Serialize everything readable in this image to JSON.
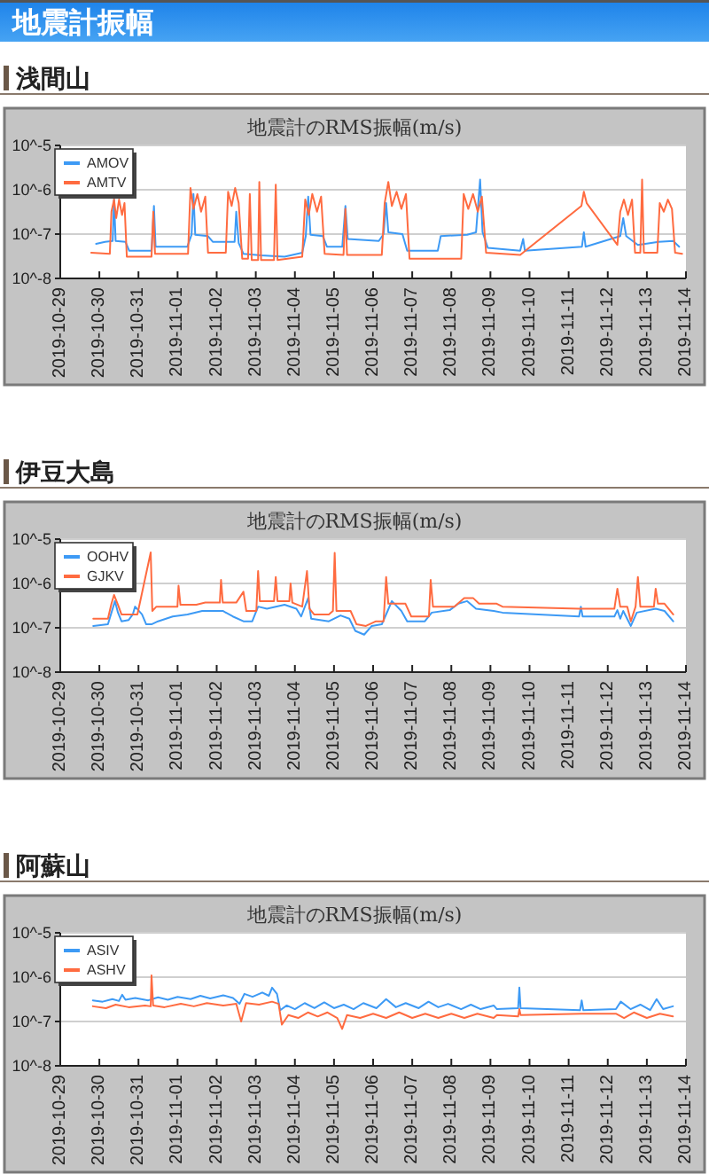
{
  "chart_data": [
    {
      "type": "other",
      "title": "地震計振幅"
    },
    {
      "type": "line",
      "title": "浅間山",
      "subtitle": "地震計のRMS振幅(m/s)",
      "xlim": [
        "2019-10-29",
        "2019-11-14"
      ],
      "xticks": [
        "2019-10-29",
        "2019-10-30",
        "2019-10-31",
        "2019-11-01",
        "2019-11-02",
        "2019-11-03",
        "2019-11-04",
        "2019-11-05",
        "2019-11-06",
        "2019-11-07",
        "2019-11-08",
        "2019-11-09",
        "2019-11-10",
        "2019-11-11",
        "2019-11-12",
        "2019-11-13",
        "2019-11-14"
      ],
      "ylim": [
        1e-08,
        1e-05
      ],
      "yticks": [
        {
          "value": 1e-08,
          "label": "10^-8"
        },
        {
          "value": 1e-07,
          "label": "10^-7"
        },
        {
          "value": 1e-06,
          "label": "10^-6"
        },
        {
          "value": 1e-05,
          "label": "10^-5"
        }
      ],
      "log": true,
      "grid": "y",
      "legend": "top left",
      "series": [
        {
          "name": "AMOV",
          "color": "#3d9af5",
          "x": [
            "2019-10-29T22:00",
            "2019-10-30T03:30",
            "2019-10-30T08:10",
            "2019-10-30T09:00",
            "2019-10-30T10:00",
            "2019-10-30T16:00",
            "2019-10-30T18:20",
            "2019-10-31T08:00",
            "2019-10-31T09:30",
            "2019-10-31T10:30",
            "2019-11-01T06:00",
            "2019-11-01T08:35",
            "2019-11-01T09:45",
            "2019-11-01T10:50",
            "2019-11-01T18:40",
            "2019-11-01T21:35",
            "2019-11-02T11:00",
            "2019-11-02T12:00",
            "2019-11-02T13:30",
            "2019-11-02T16:25",
            "2019-11-03T03:15",
            "2019-11-03T17:40",
            "2019-11-04T04:30",
            "2019-11-04T06:40",
            "2019-11-04T08:10",
            "2019-11-04T09:35",
            "2019-11-04T17:10",
            "2019-11-04T19:40",
            "2019-11-05T05:05",
            "2019-11-05T07:00",
            "2019-11-05T08:25",
            "2019-11-06T03:30",
            "2019-11-06T06:25",
            "2019-11-06T08:00",
            "2019-11-06T09:20",
            "2019-11-06T18:00",
            "2019-11-06T20:55",
            "2019-11-07T15:40",
            "2019-11-07T17:30",
            "2019-11-08T09:45",
            "2019-11-08T15:10",
            "2019-11-08T17:40",
            "2019-11-08T19:10",
            "2019-11-08T22:25",
            "2019-11-09T18:15",
            "2019-11-09T20:05",
            "2019-11-09T21:10",
            "2019-11-11T08:10",
            "2019-11-11T09:20",
            "2019-11-11T10:25",
            "2019-11-12T07:40",
            "2019-11-12T09:30",
            "2019-11-12T11:20",
            "2019-11-12T18:30",
            "2019-11-13T07:10",
            "2019-11-13T16:10",
            "2019-11-13T19:50"
          ],
          "values": [
            6e-08,
            6.7e-08,
            7e-08,
            6e-07,
            7e-08,
            6.7e-08,
            4.2e-08,
            4.2e-08,
            4.3e-07,
            5.2e-08,
            5.2e-08,
            9.7e-08,
            8e-07,
            9.7e-08,
            9e-08,
            6.7e-08,
            6.7e-08,
            3.2e-07,
            6.3e-08,
            3.6e-08,
            3.3e-08,
            3.1e-08,
            3.8e-08,
            9e-08,
            7e-07,
            9.7e-08,
            9e-08,
            5.2e-08,
            5.2e-08,
            4.3e-07,
            7.8e-08,
            7e-08,
            1e-07,
            5e-07,
            1.1e-07,
            1e-07,
            4.2e-08,
            4.2e-08,
            9e-08,
            9.7e-08,
            1.1e-07,
            1.7e-06,
            1.1e-07,
            4.9e-08,
            4.2e-08,
            7.8e-08,
            4.2e-08,
            5.2e-08,
            1.1e-07,
            5.2e-08,
            9e-08,
            2.3e-07,
            9e-08,
            5.7e-08,
            6.7e-08,
            7e-08,
            5.2e-08
          ]
        },
        {
          "name": "AMTV",
          "color": "#ff6b40",
          "x": [
            "2019-10-29T19:00",
            "2019-10-30T06:25",
            "2019-10-30T07:25",
            "2019-10-30T09:00",
            "2019-10-30T10:20",
            "2019-10-30T12:05",
            "2019-10-30T13:55",
            "2019-10-30T15:25",
            "2019-10-30T16:50",
            "2019-10-31T08:00",
            "2019-10-31T09:05",
            "2019-10-31T10:10",
            "2019-11-01T06:25",
            "2019-11-01T07:55",
            "2019-11-01T09:45",
            "2019-11-01T12:10",
            "2019-11-01T14:25",
            "2019-11-01T17:00",
            "2019-11-01T18:40",
            "2019-11-02T05:35",
            "2019-11-02T07:00",
            "2019-11-02T09:10",
            "2019-11-02T11:20",
            "2019-11-02T13:30",
            "2019-11-02T15:40",
            "2019-11-02T19:15",
            "2019-11-02T20:20",
            "2019-11-02T21:30",
            "2019-11-03T01:25",
            "2019-11-03T02:10",
            "2019-11-03T03:15",
            "2019-11-03T11:10",
            "2019-11-03T12:15",
            "2019-11-03T13:20",
            "2019-11-04T04:30",
            "2019-11-04T06:20",
            "2019-11-04T08:30",
            "2019-11-04T10:40",
            "2019-11-04T13:35",
            "2019-11-04T16:05",
            "2019-11-04T18:15",
            "2019-11-05T05:50",
            "2019-11-05T07:00",
            "2019-11-05T08:00",
            "2019-11-06T05:20",
            "2019-11-06T07:05",
            "2019-11-06T09:20",
            "2019-11-06T11:30",
            "2019-11-06T14:25",
            "2019-11-06T17:20",
            "2019-11-06T20:10",
            "2019-11-06T22:20",
            "2019-11-08T06:05",
            "2019-11-08T07:35",
            "2019-11-08T10:25",
            "2019-11-08T13:20",
            "2019-11-08T16:15",
            "2019-11-08T18:45",
            "2019-11-08T21:20",
            "2019-11-09T18:15",
            "2019-11-11T07:50",
            "2019-11-11T09:20",
            "2019-11-11T11:05",
            "2019-11-12T05:55",
            "2019-11-12T07:40",
            "2019-11-12T09:55",
            "2019-11-12T12:25",
            "2019-11-12T14:55",
            "2019-11-12T16:45",
            "2019-11-12T20:00",
            "2019-11-12T21:05",
            "2019-11-12T22:10",
            "2019-11-13T06:25",
            "2019-11-13T07:55",
            "2019-11-13T10:25",
            "2019-11-13T12:55",
            "2019-11-13T15:25",
            "2019-11-13T17:20",
            "2019-11-13T21:40"
          ],
          "values": [
            3.8e-08,
            3.6e-08,
            3.2e-07,
            6e-07,
            2.3e-07,
            6e-07,
            2.7e-07,
            5e-07,
            3.1e-08,
            3.1e-08,
            3.2e-07,
            3.6e-08,
            3.6e-08,
            1.1e-06,
            3.7e-07,
            8e-07,
            3.2e-07,
            7e-07,
            3.8e-08,
            3.8e-08,
            9e-07,
            4.3e-07,
            1.1e-06,
            5e-07,
            2.8e-08,
            2.8e-08,
            8e-07,
            2.6e-08,
            2.6e-08,
            1.5e-06,
            2.6e-08,
            2.6e-08,
            1.3e-06,
            2.6e-08,
            3.1e-08,
            6e-07,
            2.7e-07,
            8e-07,
            3.2e-07,
            7e-07,
            3.6e-08,
            3.4e-08,
            3.7e-07,
            3.4e-08,
            3.4e-08,
            5e-07,
            1.5e-06,
            4.3e-07,
            9e-07,
            3.7e-07,
            8e-07,
            2.8e-08,
            2.8e-08,
            8e-07,
            3.7e-07,
            8e-07,
            3.2e-07,
            7e-07,
            3.8e-08,
            3.4e-08,
            4.3e-07,
            9e-07,
            5e-07,
            5.7e-08,
            3.2e-07,
            6e-07,
            2.7e-07,
            6e-07,
            3.8e-08,
            3.8e-08,
            1.7e-06,
            3.8e-08,
            3.8e-08,
            5e-07,
            3.2e-07,
            6e-07,
            3.7e-07,
            3.8e-08,
            3.6e-08
          ]
        }
      ]
    },
    {
      "type": "line",
      "title": "伊豆大島",
      "subtitle": "地震計のRMS振幅(m/s)",
      "xlim": [
        "2019-10-29",
        "2019-11-14"
      ],
      "xticks": [
        "2019-10-29",
        "2019-10-30",
        "2019-10-31",
        "2019-11-01",
        "2019-11-02",
        "2019-11-03",
        "2019-11-04",
        "2019-11-05",
        "2019-11-06",
        "2019-11-07",
        "2019-11-08",
        "2019-11-09",
        "2019-11-10",
        "2019-11-11",
        "2019-11-12",
        "2019-11-13",
        "2019-11-14"
      ],
      "ylim": [
        1e-08,
        1e-05
      ],
      "yticks": [
        {
          "value": 1e-08,
          "label": "10^-8"
        },
        {
          "value": 1e-07,
          "label": "10^-7"
        },
        {
          "value": 1e-06,
          "label": "10^-6"
        },
        {
          "value": 1e-05,
          "label": "10^-5"
        }
      ],
      "log": true,
      "grid": "y",
      "legend": "top left",
      "series": [
        {
          "name": "OOHV",
          "color": "#3d9af5",
          "x": [
            "2019-10-29T20:15",
            "2019-10-30T05:15",
            "2019-10-30T07:25",
            "2019-10-30T09:35",
            "2019-10-30T11:25",
            "2019-10-30T13:35",
            "2019-10-30T18:00",
            "2019-10-30T20:30",
            "2019-10-30T21:55",
            "2019-10-31T02:10",
            "2019-10-31T04:45",
            "2019-10-31T08:00",
            "2019-10-31T12:00",
            "2019-10-31T21:00",
            "2019-11-01T06:05",
            "2019-11-01T15:05",
            "2019-11-02T03:45",
            "2019-11-02T09:55",
            "2019-11-02T16:25",
            "2019-11-02T21:50",
            "2019-11-03T01:25",
            "2019-11-03T06:50",
            "2019-11-03T17:40",
            "2019-11-04T00:55",
            "2019-11-04T03:50",
            "2019-11-04T08:10",
            "2019-11-04T10:00",
            "2019-11-04T20:50",
            "2019-11-05T04:00",
            "2019-11-05T09:25",
            "2019-11-05T13:05",
            "2019-11-05T18:30",
            "2019-11-05T23:10",
            "2019-11-06T05:20",
            "2019-11-06T08:55",
            "2019-11-06T11:30",
            "2019-11-06T17:20",
            "2019-11-06T20:55",
            "2019-11-07T07:45",
            "2019-11-07T12:00",
            "2019-11-07T23:00",
            "2019-11-08T04:20",
            "2019-11-08T09:45",
            "2019-11-08T15:10",
            "2019-11-09T02:00",
            "2019-11-09T07:25",
            "2019-11-11T06:25",
            "2019-11-11T07:30",
            "2019-11-11T08:35",
            "2019-11-12T04:05",
            "2019-11-12T05:55",
            "2019-11-12T07:40",
            "2019-11-12T09:30",
            "2019-11-12T14:10",
            "2019-11-12T17:50",
            "2019-11-13T05:25",
            "2019-11-13T10:50",
            "2019-11-13T16:10"
          ],
          "values": [
            1.1e-07,
            1.2e-07,
            2.2e-07,
            4e-07,
            2.2e-07,
            1.4e-07,
            1.5e-07,
            2e-07,
            3e-07,
            2e-07,
            1.2e-07,
            1.2e-07,
            1.4e-07,
            1.8e-07,
            2e-07,
            2.4e-07,
            2.4e-07,
            1.8e-07,
            1.4e-07,
            1.4e-07,
            3e-07,
            2.7e-07,
            3.3e-07,
            2.7e-07,
            1.8e-07,
            4.7e-07,
            1.6e-07,
            1.4e-07,
            1.9e-07,
            1.6e-07,
            8.5e-08,
            7e-08,
            1.1e-07,
            1.2e-07,
            2.4e-07,
            4e-07,
            2.4e-07,
            1.4e-07,
            1.4e-07,
            2.2e-07,
            2.5e-07,
            3.5e-07,
            4e-07,
            2.7e-07,
            2.4e-07,
            2.2e-07,
            1.8e-07,
            3e-07,
            1.8e-07,
            1.8e-07,
            2.5e-07,
            1.6e-07,
            2.4e-07,
            1.1e-07,
            2.2e-07,
            2.7e-07,
            2.4e-07,
            1.4e-07
          ]
        },
        {
          "name": "GJKV",
          "color": "#ff6b40",
          "x": [
            "2019-10-29T20:15",
            "2019-10-30T05:15",
            "2019-10-30T07:25",
            "2019-10-30T09:00",
            "2019-10-30T11:25",
            "2019-10-30T13:35",
            "2019-10-30T23:20",
            "2019-10-31T07:30",
            "2019-10-31T08:30",
            "2019-10-31T11:00",
            "2019-10-31T23:55",
            "2019-11-01T00:35",
            "2019-11-01T01:45",
            "2019-11-01T11:30",
            "2019-11-01T17:00",
            "2019-11-02T01:55",
            "2019-11-02T02:40",
            "2019-11-02T03:45",
            "2019-11-02T12:00",
            "2019-11-02T16:25",
            "2019-11-02T18:10",
            "2019-11-03T00:20",
            "2019-11-03T01:25",
            "2019-11-03T02:30",
            "2019-11-03T11:10",
            "2019-11-03T12:15",
            "2019-11-03T13:20",
            "2019-11-03T20:35",
            "2019-11-03T21:20",
            "2019-11-03T22:25",
            "2019-11-04T04:30",
            "2019-11-04T07:25",
            "2019-11-04T08:55",
            "2019-11-04T11:45",
            "2019-11-04T20:50",
            "2019-11-04T23:20",
            "2019-11-05T00:25",
            "2019-11-05T01:30",
            "2019-11-05T10:10",
            "2019-11-05T13:50",
            "2019-11-05T19:35",
            "2019-11-06T01:45",
            "2019-11-06T06:25",
            "2019-11-06T08:00",
            "2019-11-06T09:20",
            "2019-11-06T19:50",
            "2019-11-06T23:25",
            "2019-11-07T10:15",
            "2019-11-07T11:20",
            "2019-11-07T12:45",
            "2019-11-08T01:50",
            "2019-11-08T07:55",
            "2019-11-08T13:20",
            "2019-11-08T17:00",
            "2019-11-09T03:50",
            "2019-11-09T07:25",
            "2019-11-11T06:25",
            "2019-11-12T04:05",
            "2019-11-12T05:55",
            "2019-11-12T07:40",
            "2019-11-12T12:00",
            "2019-11-12T14:10",
            "2019-11-12T17:05",
            "2019-11-12T18:30",
            "2019-11-12T20:00",
            "2019-11-13T04:20",
            "2019-11-13T05:25",
            "2019-11-13T06:50",
            "2019-11-13T10:50",
            "2019-11-13T16:10"
          ],
          "values": [
            1.6e-07,
            1.6e-07,
            3.5e-07,
            5.5e-07,
            3.3e-07,
            2e-07,
            2e-07,
            5e-06,
            2.4e-07,
            3e-07,
            3e-07,
            8.9e-07,
            3.3e-07,
            3.3e-07,
            3.7e-07,
            3.7e-07,
            1.2e-06,
            3.7e-07,
            3.7e-07,
            6.5e-07,
            2.4e-07,
            2.4e-07,
            1.9e-06,
            4e-07,
            4e-07,
            1.4e-06,
            4e-07,
            4e-07,
            1e-06,
            3.7e-07,
            3e-07,
            1.9e-06,
            2.7e-07,
            2e-07,
            2e-07,
            2.4e-07,
            4.9e-06,
            2.4e-07,
            2.4e-07,
            1.2e-07,
            1.1e-07,
            1.4e-07,
            1.4e-07,
            1.4e-06,
            3.5e-07,
            3.5e-07,
            1.8e-07,
            1.8e-07,
            1.2e-06,
            3e-07,
            3e-07,
            4.7e-07,
            4.7e-07,
            3.5e-07,
            3.5e-07,
            3e-07,
            2.7e-07,
            2.7e-07,
            7.6e-07,
            3e-07,
            3e-07,
            1.4e-07,
            3e-07,
            1.4e-06,
            3e-07,
            3e-07,
            7.6e-07,
            3.5e-07,
            3.5e-07,
            2e-07
          ]
        }
      ]
    },
    {
      "type": "line",
      "title": "阿蘇山",
      "subtitle": "地震計のRMS振幅(m/s)",
      "xlim": [
        "2019-10-29",
        "2019-11-14"
      ],
      "xticks": [
        "2019-10-29",
        "2019-10-30",
        "2019-10-31",
        "2019-11-01",
        "2019-11-02",
        "2019-11-03",
        "2019-11-04",
        "2019-11-05",
        "2019-11-06",
        "2019-11-07",
        "2019-11-08",
        "2019-11-09",
        "2019-11-10",
        "2019-11-11",
        "2019-11-12",
        "2019-11-13",
        "2019-11-14"
      ],
      "ylim": [
        1e-08,
        1e-05
      ],
      "yticks": [
        {
          "value": 1e-08,
          "label": "10^-8"
        },
        {
          "value": 1e-07,
          "label": "10^-7"
        },
        {
          "value": 1e-06,
          "label": "10^-6"
        },
        {
          "value": 1e-05,
          "label": "10^-5"
        }
      ],
      "log": true,
      "grid": "y",
      "legend": "top left",
      "series": [
        {
          "name": "ASIV",
          "color": "#3d9af5",
          "x": [
            "2019-10-29T20:00",
            "2019-10-30T02:00",
            "2019-10-30T08:00",
            "2019-10-30T12:00",
            "2019-10-30T14:00",
            "2019-10-30T16:00",
            "2019-10-30T22:00",
            "2019-10-31T06:00",
            "2019-10-31T12:00",
            "2019-10-31T18:00",
            "2019-11-01T00:00",
            "2019-11-01T08:00",
            "2019-11-01T14:00",
            "2019-11-01T20:00",
            "2019-11-02T04:00",
            "2019-11-02T10:00",
            "2019-11-02T14:00",
            "2019-11-02T17:00",
            "2019-11-02T22:00",
            "2019-11-03T04:00",
            "2019-11-03T08:00",
            "2019-11-03T10:00",
            "2019-11-03T13:00",
            "2019-11-03T15:00",
            "2019-11-03T19:00",
            "2019-11-04T00:00",
            "2019-11-04T06:00",
            "2019-11-04T12:00",
            "2019-11-04T18:00",
            "2019-11-05T00:00",
            "2019-11-05T06:00",
            "2019-11-05T12:00",
            "2019-11-05T18:00",
            "2019-11-06T02:00",
            "2019-11-06T08:00",
            "2019-11-06T14:00",
            "2019-11-06T20:00",
            "2019-11-07T04:00",
            "2019-11-07T10:00",
            "2019-11-07T16:00",
            "2019-11-07T22:00",
            "2019-11-08T06:00",
            "2019-11-08T12:00",
            "2019-11-08T18:00",
            "2019-11-09T02:00",
            "2019-11-09T04:00",
            "2019-11-09T17:00",
            "2019-11-09T17:45",
            "2019-11-09T18:30",
            "2019-11-11T07:00",
            "2019-11-11T08:00",
            "2019-11-11T09:00",
            "2019-11-12T05:00",
            "2019-11-12T08:00",
            "2019-11-12T14:00",
            "2019-11-12T20:00",
            "2019-11-13T02:00",
            "2019-11-13T06:00",
            "2019-11-13T10:00",
            "2019-11-13T16:00"
          ],
          "values": [
            3e-07,
            2.8e-07,
            3.2e-07,
            2.9e-07,
            4e-07,
            3.1e-07,
            3.4e-07,
            3e-07,
            3.5e-07,
            3.1e-07,
            3.6e-07,
            3.2e-07,
            3.8e-07,
            3.3e-07,
            3.9e-07,
            3.4e-07,
            2.5e-07,
            4.2e-07,
            3.6e-07,
            4.5e-07,
            3.8e-07,
            5.8e-07,
            4.2e-07,
            1.8e-07,
            2.3e-07,
            1.9e-07,
            2.6e-07,
            2e-07,
            2.7e-07,
            2e-07,
            2.4e-07,
            1.9e-07,
            2.6e-07,
            2e-07,
            3.2e-07,
            2.1e-07,
            2.6e-07,
            2e-07,
            2.8e-07,
            2.1e-07,
            2.5e-07,
            1.9e-07,
            2.4e-07,
            1.9e-07,
            2.3e-07,
            1.9e-07,
            2e-07,
            5.8e-07,
            2e-07,
            1.8e-07,
            3e-07,
            1.8e-07,
            1.9e-07,
            2.8e-07,
            1.9e-07,
            2.4e-07,
            1.8e-07,
            3.2e-07,
            1.9e-07,
            2.2e-07
          ]
        },
        {
          "name": "ASHV",
          "color": "#ff6b40",
          "x": [
            "2019-10-29T20:00",
            "2019-10-30T04:00",
            "2019-10-30T10:00",
            "2019-10-30T18:00",
            "2019-10-31T04:00",
            "2019-10-31T07:30",
            "2019-10-31T08:00",
            "2019-10-31T09:00",
            "2019-10-31T16:00",
            "2019-11-01T02:00",
            "2019-11-01T10:00",
            "2019-11-01T18:00",
            "2019-11-02T04:00",
            "2019-11-02T12:00",
            "2019-11-02T15:00",
            "2019-11-02T18:00",
            "2019-11-03T02:00",
            "2019-11-03T10:00",
            "2019-11-03T14:00",
            "2019-11-03T16:00",
            "2019-11-03T20:00",
            "2019-11-04T02:00",
            "2019-11-04T08:00",
            "2019-11-04T14:00",
            "2019-11-04T20:00",
            "2019-11-05T02:00",
            "2019-11-05T05:00",
            "2019-11-05T08:00",
            "2019-11-05T16:00",
            "2019-11-06T00:00",
            "2019-11-06T08:00",
            "2019-11-06T16:00",
            "2019-11-07T00:00",
            "2019-11-07T08:00",
            "2019-11-07T16:00",
            "2019-11-08T00:00",
            "2019-11-08T08:00",
            "2019-11-08T16:00",
            "2019-11-09T02:00",
            "2019-11-09T04:00",
            "2019-11-09T17:00",
            "2019-11-09T17:45",
            "2019-11-09T18:30",
            "2019-11-11T08:00",
            "2019-11-12T05:00",
            "2019-11-12T10:00",
            "2019-11-12T16:00",
            "2019-11-13T00:00",
            "2019-11-13T08:00",
            "2019-11-13T16:00"
          ],
          "values": [
            2.2e-07,
            2e-07,
            2.4e-07,
            2.1e-07,
            2.3e-07,
            2.2e-07,
            1.1e-06,
            2.3e-07,
            2.1e-07,
            2.5e-07,
            2.2e-07,
            2.6e-07,
            2.3e-07,
            2.5e-07,
            1e-07,
            2.6e-07,
            2.4e-07,
            2.8e-07,
            2.5e-07,
            8.5e-08,
            1.4e-07,
            1.2e-07,
            1.6e-07,
            1.3e-07,
            1.6e-07,
            1.2e-07,
            6.8e-08,
            1.4e-07,
            1.2e-07,
            1.5e-07,
            1.2e-07,
            1.6e-07,
            1.2e-07,
            1.5e-07,
            1.2e-07,
            1.5e-07,
            1.2e-07,
            1.5e-07,
            1.2e-07,
            1.4e-07,
            1.3e-07,
            1.9e-07,
            1.4e-07,
            1.5e-07,
            1.5e-07,
            1.2e-07,
            1.6e-07,
            1.2e-07,
            1.5e-07,
            1.3e-07
          ]
        }
      ]
    }
  ]
}
